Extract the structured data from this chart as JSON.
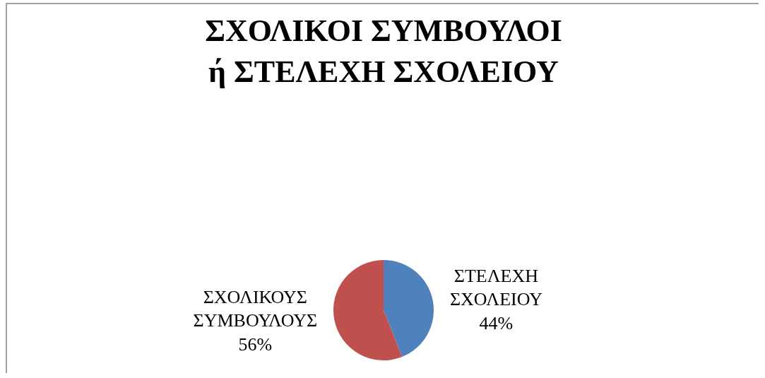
{
  "chart_data": {
    "type": "pie",
    "title": "ΣΧΟΛΙΚΟΙ ΣΥΜΒΟΥΛΟΙ ή ΣΤΕΛΕΧΗ ΣΧΟΛΕΙΟΥ",
    "categories": [
      "ΣΤΕΛΕΧΗ ΣΧΟΛΕΙΟΥ",
      "ΣΧΟΛΙΚΟΥΣ ΣΥΜΒΟΥΛΟΥΣ"
    ],
    "values": [
      44,
      56
    ],
    "value_labels": [
      "44%",
      "56%"
    ],
    "colors": [
      "#4f81bd",
      "#c0504d"
    ],
    "legend": false
  }
}
